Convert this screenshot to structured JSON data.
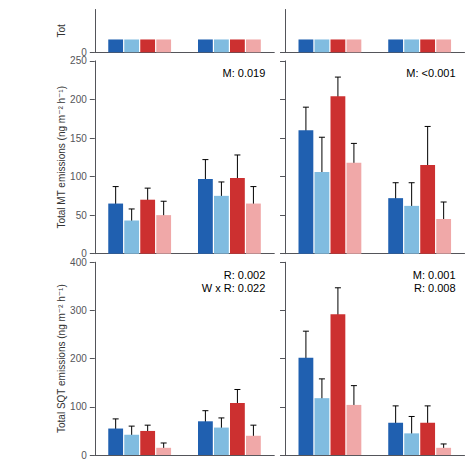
{
  "chart_data": [
    {
      "type": "bar",
      "ylabel": "Tot",
      "ylim": [
        0,
        5
      ],
      "yticks": [
        0
      ],
      "grid": false,
      "tick_labels": "y",
      "categories": [
        null,
        null
      ],
      "series": [
        {
          "color": "#2060b0",
          "values": [
            1.5,
            1.5
          ]
        },
        {
          "color": "#80bce0",
          "values": [
            1.5,
            1.5
          ]
        },
        {
          "color": "#cc3030",
          "values": [
            1.5,
            1.5
          ]
        },
        {
          "color": "#f0a8a8",
          "values": [
            1.5,
            1.5
          ]
        }
      ]
    },
    {
      "type": "bar",
      "ylim": [
        0,
        5
      ],
      "yticks": [
        0
      ],
      "grid": false,
      "tick_labels": false,
      "categories": [
        null,
        null
      ],
      "series": [
        {
          "color": "#2060b0",
          "values": [
            1.5,
            1.5
          ]
        },
        {
          "color": "#80bce0",
          "values": [
            1.5,
            1.5
          ]
        },
        {
          "color": "#cc3030",
          "values": [
            1.5,
            1.5
          ]
        },
        {
          "color": "#f0a8a8",
          "values": [
            1.5,
            1.5
          ]
        }
      ]
    },
    {
      "type": "bar",
      "ylabel": "Total MT emissions (ng m⁻² h⁻¹)",
      "ylim": [
        0,
        250
      ],
      "yticks": [
        0,
        50,
        100,
        150,
        200,
        250
      ],
      "annotation": "M: 0.019",
      "grid": false,
      "tick_labels": "y",
      "categories": [
        null,
        null
      ],
      "series": [
        {
          "color": "#2060b0",
          "values": [
            65,
            97
          ],
          "errors": [
            22,
            25
          ]
        },
        {
          "color": "#80bce0",
          "values": [
            43,
            75
          ],
          "errors": [
            15,
            18
          ]
        },
        {
          "color": "#cc3030",
          "values": [
            70,
            98
          ],
          "errors": [
            15,
            30
          ]
        },
        {
          "color": "#f0a8a8",
          "values": [
            50,
            65
          ],
          "errors": [
            18,
            22
          ]
        }
      ]
    },
    {
      "type": "bar",
      "ylim": [
        0,
        250
      ],
      "yticks": [
        0,
        50,
        100,
        150,
        200,
        250
      ],
      "annotation": "M: <0.001",
      "grid": false,
      "tick_labels": false,
      "categories": [
        null,
        null
      ],
      "series": [
        {
          "color": "#2060b0",
          "values": [
            160,
            72
          ],
          "errors": [
            30,
            20
          ]
        },
        {
          "color": "#80bce0",
          "values": [
            106,
            62
          ],
          "errors": [
            45,
            30
          ]
        },
        {
          "color": "#cc3030",
          "values": [
            204,
            115
          ],
          "errors": [
            25,
            50
          ]
        },
        {
          "color": "#f0a8a8",
          "values": [
            118,
            45
          ],
          "errors": [
            25,
            22
          ]
        }
      ]
    },
    {
      "type": "bar",
      "ylabel": "Total SQT emissions (ng m⁻² h⁻¹)",
      "ylim": [
        0,
        400
      ],
      "yticks": [
        0,
        100,
        200,
        300,
        400
      ],
      "annotation": "R: 0.002\nW x R: 0.022",
      "grid": false,
      "tick_labels": "y",
      "categories": [
        null,
        null
      ],
      "series": [
        {
          "color": "#2060b0",
          "values": [
            55,
            70
          ],
          "errors": [
            20,
            22
          ]
        },
        {
          "color": "#80bce0",
          "values": [
            42,
            57
          ],
          "errors": [
            18,
            20
          ]
        },
        {
          "color": "#cc3030",
          "values": [
            50,
            108
          ],
          "errors": [
            12,
            28
          ]
        },
        {
          "color": "#f0a8a8",
          "values": [
            15,
            40
          ],
          "errors": [
            10,
            22
          ]
        }
      ]
    },
    {
      "type": "bar",
      "ylim": [
        0,
        400
      ],
      "yticks": [
        0,
        100,
        200,
        300,
        400
      ],
      "annotation": "M: 0.001\nR: 0.008",
      "grid": false,
      "tick_labels": false,
      "categories": [
        null,
        null
      ],
      "series": [
        {
          "color": "#2060b0",
          "values": [
            202,
            67
          ],
          "errors": [
            55,
            35
          ]
        },
        {
          "color": "#80bce0",
          "values": [
            118,
            45
          ],
          "errors": [
            40,
            35
          ]
        },
        {
          "color": "#cc3030",
          "values": [
            292,
            67
          ],
          "errors": [
            55,
            35
          ]
        },
        {
          "color": "#f0a8a8",
          "values": [
            104,
            15
          ],
          "errors": [
            40,
            8
          ]
        }
      ]
    }
  ]
}
